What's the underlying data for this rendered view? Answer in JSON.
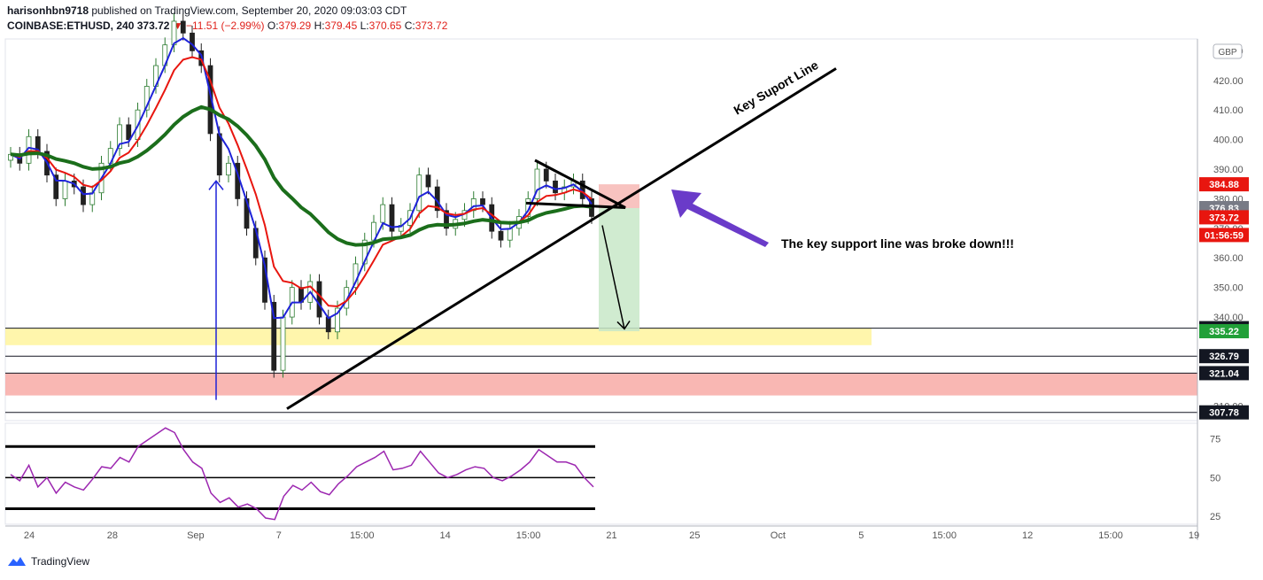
{
  "header": {
    "publisher": "harisonhbn9718",
    "published_text": "published on TradingView.com, September 20, 2020 09:03:03 CDT",
    "symbol": "COINBASE:ETHUSD, 240",
    "last": "373.72",
    "change_arrow": "▼",
    "change": "−11.51 (−2.99%)",
    "open_label": "O:",
    "open": "379.29",
    "high_label": "H:",
    "high": "379.45",
    "low_label": "L:",
    "low": "370.65",
    "close_label": "C:",
    "close": "373.72"
  },
  "footer": {
    "brand": "TradingView",
    "logo_icon": "tradingview-logo-icon"
  },
  "colors": {
    "up": "#26a69a",
    "down": "#ef5350",
    "ema_fast": "#1e22d8",
    "ema_mid": "#e8160f",
    "ema_slow": "#1b6e1b",
    "rsi": "#9c27b0",
    "zone_yellow": "#fff59d",
    "zone_red": "#f8aaa6",
    "arrow_purple": "#6a3bc9"
  },
  "chart_data": {
    "type": "candlestick",
    "title": "",
    "currency_badge": "GBP",
    "x_tick_labels": [
      "24",
      "28",
      "Sep",
      "7",
      "15:00",
      "14",
      "15:00",
      "21",
      "25",
      "Oct",
      "5",
      "15:00",
      "12",
      "15:00",
      "19"
    ],
    "y_tick_labels": [
      "430.00",
      "420.00",
      "410.00",
      "400.00",
      "390.00",
      "380.00",
      "370.00",
      "360.00",
      "350.00",
      "340.00",
      "310.00"
    ],
    "ylim": [
      305,
      434
    ],
    "price_tags": [
      {
        "value": 384.88,
        "label": "384.88",
        "style": "red"
      },
      {
        "value": 376.83,
        "label": "376.83",
        "style": "gray"
      },
      {
        "value": 373.72,
        "label": "373.72",
        "style": "red"
      },
      {
        "value": 370.0,
        "label": "01:56:59",
        "style": "red"
      },
      {
        "value": 336.25,
        "label": "336.25",
        "style": "black"
      },
      {
        "value": 335.22,
        "label": "335.22",
        "style": "green"
      },
      {
        "value": 326.79,
        "label": "326.79",
        "style": "black"
      },
      {
        "value": 321.04,
        "label": "321.04",
        "style": "black"
      },
      {
        "value": 307.78,
        "label": "307.78",
        "style": "black"
      }
    ],
    "zones": [
      {
        "name": "yellow-support-zone",
        "from": 330.5,
        "to": 336.25
      },
      {
        "name": "red-demand-zone",
        "from": 313.5,
        "to": 321.04
      }
    ],
    "annotations": {
      "key_line_label": "Key Suport Line",
      "note": "The key support line was broke down!!!"
    },
    "series": [
      {
        "close": [
          395,
          392,
          401,
          396,
          388,
          380,
          386,
          384,
          378,
          382,
          392,
          397,
          405,
          400,
          410,
          418,
          425,
          432,
          440,
          436,
          430,
          425,
          402,
          388,
          392,
          380,
          370,
          360,
          345,
          322,
          340,
          350,
          345,
          352,
          340,
          335,
          343,
          350,
          358,
          366,
          372,
          378,
          369,
          371,
          376,
          388,
          384,
          376,
          370,
          373,
          376,
          380,
          378,
          369,
          366,
          370,
          374,
          380,
          390,
          386,
          382,
          384,
          386,
          380,
          374
        ]
      }
    ],
    "rsi": {
      "ylim": [
        20,
        85
      ],
      "levels": [
        70,
        50,
        30
      ],
      "tick_labels": [
        "75",
        "50",
        "25"
      ],
      "values": [
        52,
        48,
        58,
        44,
        50,
        40,
        47,
        44,
        42,
        49,
        57,
        56,
        63,
        60,
        70,
        74,
        78,
        82,
        79,
        68,
        60,
        56,
        40,
        34,
        37,
        31,
        33,
        30,
        24,
        23,
        38,
        45,
        42,
        47,
        41,
        39,
        46,
        51,
        57,
        60,
        63,
        67,
        55,
        56,
        58,
        67,
        60,
        53,
        50,
        52,
        55,
        57,
        56,
        50,
        48,
        51,
        55,
        60,
        68,
        64,
        60,
        60,
        58,
        50,
        44
      ]
    }
  }
}
